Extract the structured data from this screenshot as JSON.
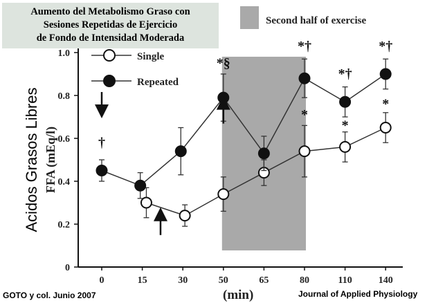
{
  "title_lines": [
    "Aumento del Metabolismo Graso con",
    "Sesiones Repetidas de Ejercicio",
    "de Fondo de Intensidad Moderada"
  ],
  "source": "GOTO y col.  Junio 2007",
  "journal": "Journal of Applied Physiology",
  "chart_data": {
    "type": "line",
    "title": "Aumento del Metabolismo Graso con Sesiones Repetidas de Ejercicio de Fondo de Intensidad Moderada",
    "xlabel": "(min)",
    "ylabel": "FFA (mEq/l)",
    "ylabel_overlay": "Acidos Grasos Libres",
    "categories": [
      "0",
      "15",
      "30",
      "50",
      "65",
      "80",
      "110",
      "140"
    ],
    "ylim": [
      0,
      1.0
    ],
    "yticks": [
      "0",
      "0.2",
      "0.4",
      "0.6",
      "0.8",
      "1.0"
    ],
    "shaded_region": {
      "label": "Second half of exercise",
      "from_category": 3,
      "to_category": 5
    },
    "series": [
      {
        "name": "Single",
        "marker": "open-circle",
        "points": [
          {
            "x": 1.1,
            "y": 0.3,
            "err": 0.07
          },
          {
            "x": 2.05,
            "y": 0.24,
            "err": 0.05
          },
          {
            "x": 3,
            "y": 0.34,
            "err": 0.08
          },
          {
            "x": 4,
            "y": 0.44,
            "err": 0.06
          },
          {
            "x": 5,
            "y": 0.54,
            "err": 0.12
          },
          {
            "x": 6,
            "y": 0.56,
            "err": 0.07
          },
          {
            "x": 7,
            "y": 0.65,
            "err": 0.07
          }
        ]
      },
      {
        "name": "Repeated",
        "marker": "filled-circle",
        "points": [
          {
            "x": 0,
            "y": 0.45,
            "err": 0.05
          },
          {
            "x": 0.95,
            "y": 0.38,
            "err": 0.06
          },
          {
            "x": 1.95,
            "y": 0.54,
            "err": 0.11
          },
          {
            "x": 3,
            "y": 0.79,
            "err": 0.11
          },
          {
            "x": 4,
            "y": 0.53,
            "err": 0.08
          },
          {
            "x": 5,
            "y": 0.88,
            "err": 0.09
          },
          {
            "x": 6,
            "y": 0.77,
            "err": 0.07
          },
          {
            "x": 7,
            "y": 0.9,
            "err": 0.07
          }
        ]
      }
    ],
    "annotations": [
      {
        "text": "†",
        "x": 0,
        "y": 0.56
      },
      {
        "text": "*§",
        "x": 3,
        "y": 0.93
      },
      {
        "text": "*†",
        "x": 5,
        "y": 1.01
      },
      {
        "text": "*",
        "x": 5,
        "y": 0.69
      },
      {
        "text": "*†",
        "x": 6,
        "y": 0.88
      },
      {
        "text": "*",
        "x": 6,
        "y": 0.64
      },
      {
        "text": "*†",
        "x": 7,
        "y": 1.01
      },
      {
        "text": "*",
        "x": 7,
        "y": 0.74
      }
    ],
    "arrows": [
      {
        "direction": "down",
        "x": 0,
        "y": 0.7
      },
      {
        "direction": "up",
        "x": 1.45,
        "y": 0.22
      },
      {
        "direction": "up",
        "x": 3,
        "y": 0.74
      }
    ]
  }
}
